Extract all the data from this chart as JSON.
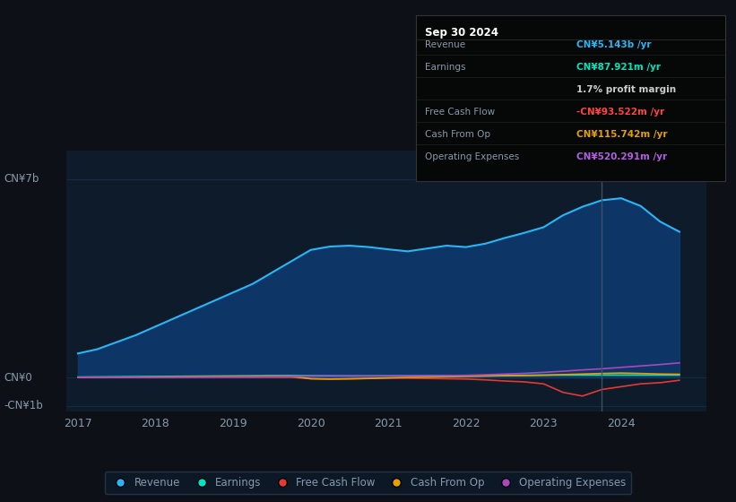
{
  "bg_color": "#0d1117",
  "chart_bg": "#0d1b2a",
  "title": "Sep 30 2024",
  "tooltip": {
    "Revenue": {
      "value": "CN¥5.143b /yr",
      "color": "#29b6f6"
    },
    "Earnings": {
      "value": "CN¥87.921m /yr",
      "color": "#00e5c0"
    },
    "profit_margin": "1.7% profit margin",
    "Free Cash Flow": {
      "value": "-CN¥93.522m /yr",
      "color": "#ff4444"
    },
    "Cash From Op": {
      "value": "CN¥115.742m /yr",
      "color": "#e5a000"
    },
    "Operating Expenses": {
      "value": "CN¥520.291m /yr",
      "color": "#b060e0"
    }
  },
  "years": [
    2017.0,
    2017.25,
    2017.5,
    2017.75,
    2018.0,
    2018.25,
    2018.5,
    2018.75,
    2019.0,
    2019.25,
    2019.5,
    2019.75,
    2020.0,
    2020.25,
    2020.5,
    2020.75,
    2021.0,
    2021.25,
    2021.5,
    2021.75,
    2022.0,
    2022.25,
    2022.5,
    2022.75,
    2023.0,
    2023.25,
    2023.5,
    2023.75,
    2024.0,
    2024.25,
    2024.5,
    2024.75
  ],
  "revenue": [
    0.85,
    1.0,
    1.25,
    1.5,
    1.8,
    2.1,
    2.4,
    2.7,
    3.0,
    3.3,
    3.7,
    4.1,
    4.5,
    4.62,
    4.65,
    4.6,
    4.52,
    4.45,
    4.55,
    4.65,
    4.6,
    4.72,
    4.92,
    5.1,
    5.3,
    5.72,
    6.02,
    6.25,
    6.32,
    6.05,
    5.5,
    5.14
  ],
  "earnings": [
    0.02,
    0.025,
    0.03,
    0.035,
    0.04,
    0.045,
    0.05,
    0.055,
    0.06,
    0.065,
    0.07,
    0.07,
    0.065,
    0.062,
    0.06,
    0.06,
    0.06,
    0.062,
    0.068,
    0.072,
    0.072,
    0.078,
    0.082,
    0.085,
    0.085,
    0.088,
    0.09,
    0.09,
    0.09,
    0.09,
    0.089,
    0.088
  ],
  "free_cash_flow": [
    0.01,
    0.01,
    0.01,
    0.01,
    0.01,
    0.01,
    0.01,
    0.01,
    0.01,
    0.01,
    0.01,
    0.01,
    -0.04,
    -0.06,
    -0.05,
    -0.03,
    -0.02,
    -0.02,
    -0.03,
    -0.04,
    -0.05,
    -0.08,
    -0.12,
    -0.15,
    -0.22,
    -0.52,
    -0.65,
    -0.42,
    -0.32,
    -0.22,
    -0.18,
    -0.094
  ],
  "cash_from_op": [
    0.005,
    0.007,
    0.01,
    0.015,
    0.02,
    0.025,
    0.03,
    0.035,
    0.04,
    0.045,
    0.05,
    0.05,
    -0.04,
    -0.05,
    -0.04,
    -0.03,
    -0.01,
    0.01,
    0.02,
    0.03,
    0.04,
    0.055,
    0.065,
    0.07,
    0.085,
    0.105,
    0.125,
    0.145,
    0.16,
    0.145,
    0.125,
    0.116
  ],
  "operating_expenses": [
    0.008,
    0.009,
    0.01,
    0.012,
    0.015,
    0.018,
    0.02,
    0.022,
    0.025,
    0.028,
    0.035,
    0.04,
    0.048,
    0.05,
    0.052,
    0.052,
    0.055,
    0.058,
    0.065,
    0.07,
    0.08,
    0.1,
    0.125,
    0.15,
    0.185,
    0.225,
    0.27,
    0.31,
    0.36,
    0.41,
    0.46,
    0.52
  ],
  "revenue_color": "#29b6f6",
  "earnings_color": "#00e5c0",
  "free_cash_flow_color": "#e53935",
  "cash_from_op_color": "#e5a000",
  "operating_expenses_color": "#ab47bc",
  "revenue_fill_color": "#0d3a6e",
  "ylim_min": -1.2,
  "ylim_max": 8.0,
  "ylabel_labels": [
    "CN¥7b",
    "CN¥0",
    "-CN¥1b"
  ],
  "ylabel_tick_vals": [
    7,
    0,
    -1
  ],
  "xtick_labels": [
    "2017",
    "2018",
    "2019",
    "2020",
    "2021",
    "2022",
    "2023",
    "2024"
  ],
  "xtick_vals": [
    2017,
    2018,
    2019,
    2020,
    2021,
    2022,
    2023,
    2024
  ],
  "legend_labels": [
    "Revenue",
    "Earnings",
    "Free Cash Flow",
    "Cash From Op",
    "Operating Expenses"
  ],
  "legend_colors": [
    "#29b6f6",
    "#00e5c0",
    "#e53935",
    "#e5a000",
    "#ab47bc"
  ],
  "vline_x": 2023.75,
  "grid_color": "#1e3a5f",
  "text_color": "#8899aa"
}
